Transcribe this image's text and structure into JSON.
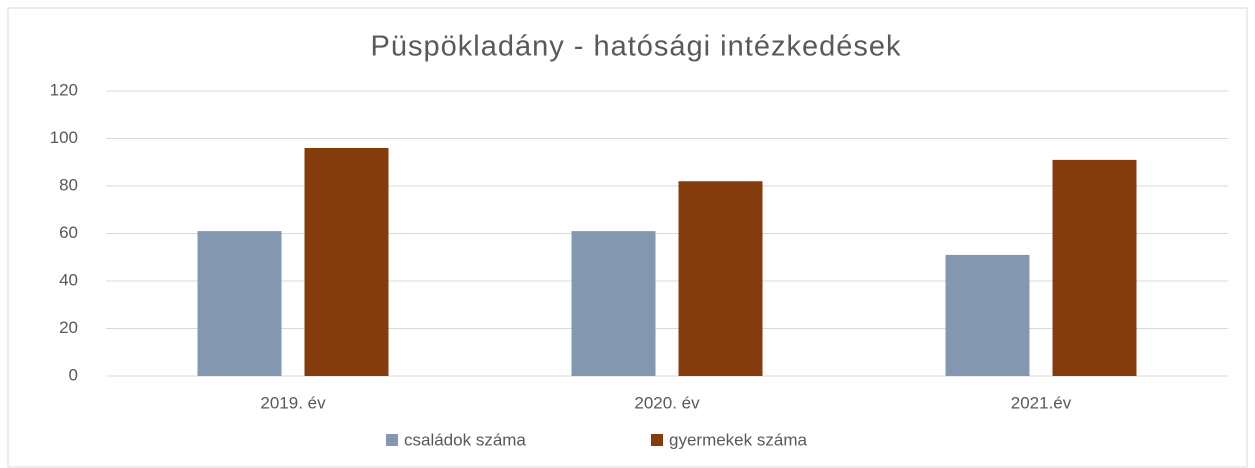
{
  "chart_data": {
    "type": "bar",
    "title": "Püspökladány - hatósági intézkedések",
    "categories": [
      "2019. év",
      "2020. év",
      "2021.év"
    ],
    "series": [
      {
        "name": "családok száma",
        "color": "#8497b0",
        "values": [
          61,
          61,
          51
        ]
      },
      {
        "name": "gyermekek száma",
        "color": "#843c0c",
        "values": [
          96,
          82,
          91
        ]
      }
    ],
    "ylim": [
      0,
      120
    ],
    "yticks": [
      0,
      20,
      40,
      60,
      80,
      100,
      120
    ],
    "grid": true,
    "legend": "bottom"
  }
}
